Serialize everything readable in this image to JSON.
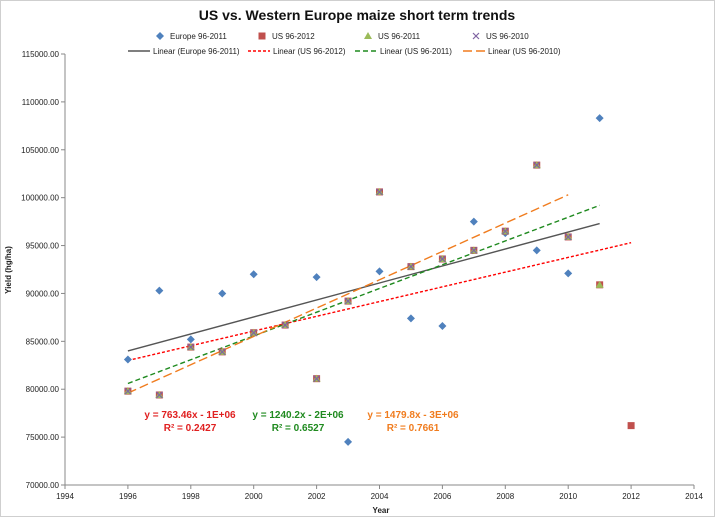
{
  "chart_data": {
    "type": "scatter",
    "title": "US vs. Western Europe maize short term trends",
    "xlabel": "Year",
    "ylabel": "Yield (hg/ha)",
    "xlim": [
      1994,
      2014
    ],
    "ylim": [
      70000,
      115000
    ],
    "x_ticks": [
      1994,
      1996,
      1998,
      2000,
      2002,
      2004,
      2006,
      2008,
      2010,
      2012,
      2014
    ],
    "y_ticks": [
      70000,
      75000,
      80000,
      85000,
      90000,
      95000,
      100000,
      105000,
      110000,
      115000
    ],
    "x_tick_labels": [
      "1994",
      "1996",
      "1998",
      "2000",
      "2002",
      "2004",
      "2006",
      "2008",
      "2010",
      "2012",
      "2014"
    ],
    "y_tick_labels": [
      "70000.00",
      "75000.00",
      "80000.00",
      "85000.00",
      "90000.00",
      "95000.00",
      "100000.00",
      "105000.00",
      "110000.00",
      "115000.00"
    ],
    "grid": false,
    "legend_position": "top",
    "series": [
      {
        "name": "Europe 96-2011",
        "marker": "diamond",
        "color": "#4f81bd",
        "points": [
          [
            1996,
            83100
          ],
          [
            1997,
            90300
          ],
          [
            1998,
            85200
          ],
          [
            1999,
            90000
          ],
          [
            2000,
            92000
          ],
          [
            2002,
            91700
          ],
          [
            2003,
            74500
          ],
          [
            2004,
            92300
          ],
          [
            2005,
            87400
          ],
          [
            2006,
            86600
          ],
          [
            2007,
            97500
          ],
          [
            2008,
            96300
          ],
          [
            2009,
            94500
          ],
          [
            2010,
            92100
          ],
          [
            2011,
            108300
          ]
        ]
      },
      {
        "name": "US 96-2012",
        "marker": "square",
        "color": "#c0504d",
        "points": [
          [
            1996,
            79800
          ],
          [
            1997,
            79400
          ],
          [
            1998,
            84400
          ],
          [
            1999,
            83900
          ],
          [
            2000,
            85900
          ],
          [
            2001,
            86700
          ],
          [
            2002,
            81100
          ],
          [
            2003,
            89200
          ],
          [
            2004,
            100600
          ],
          [
            2005,
            92800
          ],
          [
            2006,
            93600
          ],
          [
            2007,
            94500
          ],
          [
            2008,
            96500
          ],
          [
            2009,
            103400
          ],
          [
            2010,
            95900
          ],
          [
            2011,
            90900
          ],
          [
            2012,
            76200
          ]
        ]
      },
      {
        "name": "US 96-2011",
        "marker": "triangle",
        "color": "#9bbb59",
        "points": [
          [
            1996,
            79800
          ],
          [
            1997,
            79400
          ],
          [
            1998,
            84400
          ],
          [
            1999,
            83900
          ],
          [
            2000,
            85900
          ],
          [
            2001,
            86700
          ],
          [
            2002,
            81100
          ],
          [
            2003,
            89200
          ],
          [
            2004,
            100600
          ],
          [
            2005,
            92800
          ],
          [
            2006,
            93600
          ],
          [
            2007,
            94500
          ],
          [
            2008,
            96500
          ],
          [
            2009,
            103400
          ],
          [
            2010,
            95900
          ],
          [
            2011,
            90900
          ]
        ]
      },
      {
        "name": "US 96-2010",
        "marker": "x",
        "color": "#8064a2",
        "points": [
          [
            1996,
            79800
          ],
          [
            1997,
            79400
          ],
          [
            1998,
            84400
          ],
          [
            1999,
            83900
          ],
          [
            2000,
            85900
          ],
          [
            2001,
            86700
          ],
          [
            2002,
            81100
          ],
          [
            2003,
            89200
          ],
          [
            2004,
            100600
          ],
          [
            2005,
            92800
          ],
          [
            2006,
            93600
          ],
          [
            2007,
            94500
          ],
          [
            2008,
            96500
          ],
          [
            2009,
            103400
          ],
          [
            2010,
            95900
          ]
        ]
      }
    ],
    "trendlines": [
      {
        "name": "Linear (Europe 96-2011)",
        "color": "#555555",
        "dash": "solid",
        "x_range": [
          1996,
          2011
        ],
        "y_range": [
          84000,
          97300
        ]
      },
      {
        "name": "Linear (US 96-2012)",
        "color": "#ff0000",
        "dash": "dotted",
        "x_range": [
          1996,
          2012
        ],
        "y_range": [
          83000,
          95300
        ]
      },
      {
        "name": "Linear (US 96-2011)",
        "color": "#1f8a1f",
        "dash": "dashed",
        "x_range": [
          1996,
          2011
        ],
        "y_range": [
          80600,
          99200
        ]
      },
      {
        "name": "Linear (US 96-2010)",
        "color": "#f07c1e",
        "dash": "longdash",
        "x_range": [
          1996,
          2010
        ],
        "y_range": [
          79600,
          100300
        ]
      }
    ],
    "annotations": [
      {
        "lines": [
          "y = 763.46x - 1E+06",
          "R² = 0.2427"
        ],
        "color": "#e02020"
      },
      {
        "lines": [
          "y = 1240.2x - 2E+06",
          "R² = 0.6527"
        ],
        "color": "#1f8a1f"
      },
      {
        "lines": [
          "y = 1479.8x - 3E+06",
          "R² = 0.7661"
        ],
        "color": "#f07c1e"
      }
    ]
  }
}
